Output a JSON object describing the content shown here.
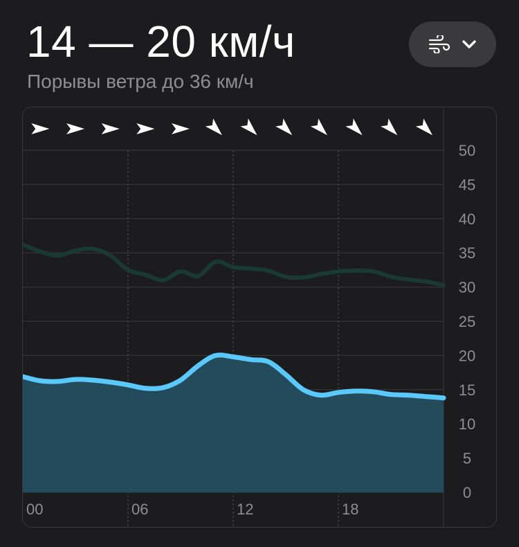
{
  "header": {
    "title": "14 — 20 км/ч",
    "subtitle": "Порывы ветра до 36 км/ч",
    "selector_icon": "wind-icon",
    "dropdown_icon": "chevron-down-icon"
  },
  "colors": {
    "background": "#1c1c1e",
    "wind_line": "#5ac8fa",
    "wind_fill": "#244b5b",
    "gust_line": "#1a3a30",
    "grid": "#3a3a3c"
  },
  "chart_data": {
    "type": "area",
    "xlabel": "",
    "ylabel": "",
    "x_tick_labels": [
      "00",
      "06",
      "12",
      "18"
    ],
    "y_ticks": [
      0,
      5,
      10,
      15,
      20,
      25,
      30,
      35,
      40,
      45,
      50
    ],
    "ylim": [
      0,
      50
    ],
    "xlim": [
      0,
      24
    ],
    "grid": true,
    "series": [
      {
        "x": [
          0,
          1,
          2,
          3,
          4,
          5,
          6,
          7,
          8,
          9,
          10,
          11,
          12,
          13,
          14,
          15,
          16,
          17,
          18,
          19,
          20,
          21,
          22,
          23,
          24
        ],
        "values": [
          16.9,
          16.3,
          16.2,
          16.5,
          16.4,
          16.1,
          15.7,
          15.2,
          15.3,
          16.4,
          18.5,
          20.0,
          19.8,
          19.4,
          19.1,
          17.2,
          15.0,
          14.2,
          14.6,
          14.8,
          14.7,
          14.3,
          14.2,
          14.0,
          13.8
        ]
      },
      {
        "x": [
          0,
          1,
          2,
          3,
          4,
          5,
          6,
          7,
          8,
          9,
          10,
          11,
          12,
          13,
          14,
          15,
          16,
          17,
          18,
          19,
          20,
          21,
          22,
          23,
          24
        ],
        "values": [
          36.2,
          35.2,
          34.6,
          35.3,
          35.6,
          34.6,
          32.5,
          31.8,
          31.0,
          32.3,
          31.6,
          33.7,
          32.9,
          32.7,
          32.4,
          31.5,
          31.4,
          31.9,
          32.3,
          32.4,
          32.3,
          31.5,
          31.1,
          30.8,
          30.3
        ]
      }
    ],
    "direction_markers": {
      "x": [
        1,
        3,
        5,
        7,
        9,
        11,
        13,
        15,
        17,
        19,
        21,
        23
      ],
      "bearing_deg": [
        90,
        90,
        90,
        90,
        90,
        135,
        135,
        135,
        135,
        135,
        135,
        135
      ]
    }
  }
}
